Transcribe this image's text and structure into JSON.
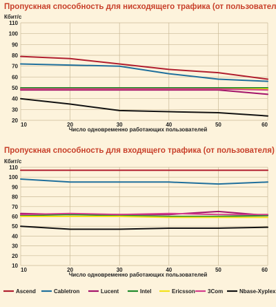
{
  "legend": [
    {
      "name": "Ascend",
      "color": "#b01e2e"
    },
    {
      "name": "Cabletron",
      "color": "#1f6f9c"
    },
    {
      "name": "Lucent",
      "color": "#a3136a"
    },
    {
      "name": "Intel",
      "color": "#1e8a2a"
    },
    {
      "name": "Ericsson",
      "color": "#f2e21a"
    },
    {
      "name": "3Com",
      "color": "#d43c8c"
    },
    {
      "name": "Nbase-Xyplex",
      "color": "#111111"
    }
  ],
  "chart_data": [
    {
      "type": "line",
      "title": "Пропускная способность для нисходящего трафика (от пользователя)",
      "ylabel": "Кбит/с",
      "xlabel": "Число одновременно работающих пользователей",
      "x": [
        10,
        20,
        30,
        40,
        50,
        60
      ],
      "ylim": [
        20,
        110
      ],
      "yticks": [
        20,
        30,
        40,
        50,
        60,
        70,
        80,
        90,
        100,
        110
      ],
      "grid": true,
      "series": [
        {
          "name": "Ascend",
          "color": "#b01e2e",
          "values": [
            79,
            77,
            72,
            67,
            64,
            58
          ]
        },
        {
          "name": "Cabletron",
          "color": "#1f6f9c",
          "values": [
            72,
            71,
            70,
            63,
            58,
            56
          ]
        },
        {
          "name": "Lucent",
          "color": "#a3136a",
          "values": [
            48,
            48,
            48,
            48,
            48,
            44
          ]
        },
        {
          "name": "Intel",
          "color": "#1e8a2a",
          "values": [
            50,
            50,
            50,
            50,
            50,
            50
          ]
        },
        {
          "name": "Ericsson",
          "color": "#f2e21a",
          "values": [
            49,
            49,
            49,
            49,
            49,
            49
          ]
        },
        {
          "name": "3Com",
          "color": "#d43c8c",
          "values": [
            49,
            49,
            49,
            49,
            49,
            48
          ]
        },
        {
          "name": "Nbase-Xyplex",
          "color": "#111111",
          "values": [
            40,
            35,
            29,
            28,
            27,
            24
          ]
        }
      ]
    },
    {
      "type": "line",
      "title": "Пропускная способность для входящего трафика (от пользователя)",
      "ylabel": "Кбит/с",
      "xlabel": "Число одновременно работающих пользователей",
      "x": [
        10,
        20,
        30,
        40,
        50,
        60
      ],
      "ylim": [
        10,
        110
      ],
      "yticks": [
        10,
        20,
        30,
        40,
        50,
        60,
        70,
        80,
        90,
        100,
        110
      ],
      "grid": true,
      "series": [
        {
          "name": "Ascend",
          "color": "#b01e2e",
          "values": [
            107,
            107,
            107,
            107,
            107,
            107
          ]
        },
        {
          "name": "Cabletron",
          "color": "#1f6f9c",
          "values": [
            98,
            95,
            95,
            95,
            93,
            95
          ]
        },
        {
          "name": "Lucent",
          "color": "#a3136a",
          "values": [
            63,
            62,
            62,
            62,
            65,
            61
          ]
        },
        {
          "name": "Intel",
          "color": "#1e8a2a",
          "values": [
            61,
            62,
            61,
            60,
            60,
            61
          ]
        },
        {
          "name": "Ericsson",
          "color": "#f2e21a",
          "values": [
            60,
            60,
            60,
            59,
            59,
            59
          ]
        },
        {
          "name": "3Com",
          "color": "#d43c8c",
          "values": [
            62,
            63,
            62,
            63,
            62,
            62
          ]
        },
        {
          "name": "Nbase-Xyplex",
          "color": "#111111",
          "values": [
            50,
            47,
            47,
            48,
            48,
            49
          ]
        }
      ]
    }
  ]
}
